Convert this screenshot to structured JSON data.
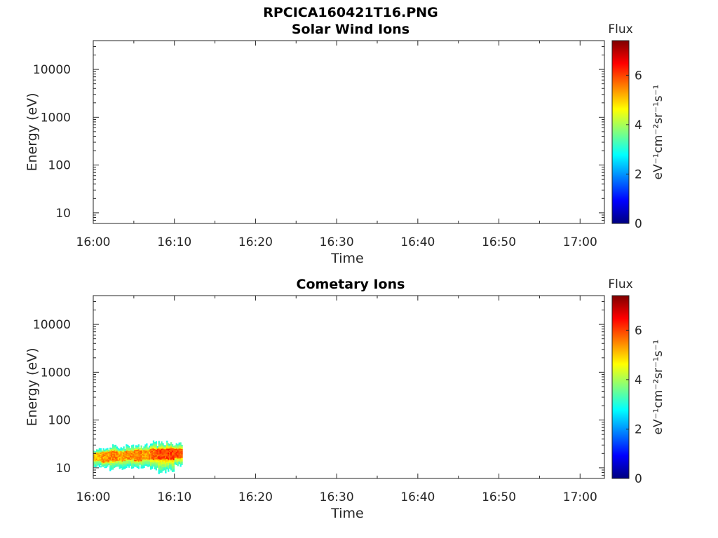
{
  "figure_title": "RPCICA160421T16.PNG",
  "chart_data": [
    {
      "type": "heatmap",
      "title": "Solar Wind Ions",
      "xlabel": "Time",
      "ylabel": "Energy (eV)",
      "x_ticks": [
        "16:00",
        "16:10",
        "16:20",
        "16:30",
        "16:40",
        "16:50",
        "17:00"
      ],
      "xlim_minutes": [
        0,
        63
      ],
      "y_scale": "log",
      "ylim": [
        6,
        40000
      ],
      "y_ticks": [
        10,
        100,
        1000,
        10000
      ],
      "y_tick_labels": [
        "10",
        "100",
        "1000",
        "10000"
      ],
      "colorbar": {
        "title": "Flux",
        "label": "eV⁻¹cm⁻²sr⁻¹s⁻¹",
        "range": [
          0,
          7.4
        ],
        "ticks": [
          0,
          2,
          4,
          6
        ],
        "tick_labels": [
          "0",
          "2",
          "4",
          "6"
        ],
        "colormap": "jet"
      },
      "data": []
    },
    {
      "type": "heatmap",
      "title": "Cometary Ions",
      "xlabel": "Time",
      "ylabel": "Energy (eV)",
      "x_ticks": [
        "16:00",
        "16:10",
        "16:20",
        "16:30",
        "16:40",
        "16:50",
        "17:00"
      ],
      "xlim_minutes": [
        0,
        63
      ],
      "y_scale": "log",
      "ylim": [
        6,
        40000
      ],
      "y_ticks": [
        10,
        100,
        1000,
        10000
      ],
      "y_tick_labels": [
        "10",
        "100",
        "1000",
        "10000"
      ],
      "colorbar": {
        "title": "Flux",
        "label": "eV⁻¹cm⁻²sr⁻¹s⁻¹",
        "range": [
          0,
          7.4
        ],
        "ticks": [
          0,
          2,
          4,
          6
        ],
        "tick_labels": [
          "0",
          "2",
          "4",
          "6"
        ],
        "colormap": "jet"
      },
      "data_summary": "Ion flux between 16:00 and ~16:11 at energies ~8–35 eV, peak flux ~6 near 15–25 eV",
      "data": [
        {
          "t": 0.5,
          "e_low": 9,
          "e_high": 26,
          "core_low": 14,
          "core_high": 21,
          "peak": 5.6
        },
        {
          "t": 1.5,
          "e_low": 10,
          "e_high": 28,
          "core_low": 13,
          "core_high": 22,
          "peak": 5.8
        },
        {
          "t": 2.5,
          "e_low": 9,
          "e_high": 30,
          "core_low": 14,
          "core_high": 23,
          "peak": 6.0
        },
        {
          "t": 3.5,
          "e_low": 8,
          "e_high": 30,
          "core_low": 14,
          "core_high": 22,
          "peak": 5.7
        },
        {
          "t": 4.5,
          "e_low": 9,
          "e_high": 32,
          "core_low": 15,
          "core_high": 23,
          "peak": 5.9
        },
        {
          "t": 5.5,
          "e_low": 10,
          "e_high": 31,
          "core_low": 14,
          "core_high": 24,
          "peak": 6.0
        },
        {
          "t": 6.5,
          "e_low": 9,
          "e_high": 32,
          "core_low": 15,
          "core_high": 24,
          "peak": 5.8
        },
        {
          "t": 7.5,
          "e_low": 9,
          "e_high": 33,
          "core_low": 15,
          "core_high": 25,
          "peak": 6.2
        },
        {
          "t": 8.5,
          "e_low": 8,
          "e_high": 33,
          "core_low": 15,
          "core_high": 25,
          "peak": 6.4
        },
        {
          "t": 9.5,
          "e_low": 9,
          "e_high": 34,
          "core_low": 15,
          "core_high": 26,
          "peak": 6.5
        },
        {
          "t": 10.5,
          "e_low": 11,
          "e_high": 32,
          "core_low": 16,
          "core_high": 25,
          "peak": 6.3
        }
      ]
    }
  ]
}
